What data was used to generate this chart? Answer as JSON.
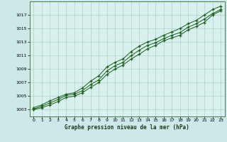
{
  "title": "Graphe pression niveau de la mer (hPa)",
  "background_color": "#cde8e8",
  "plot_bg_color": "#d8f0ee",
  "grid_color": "#b0cece",
  "line_color": "#1a5c1a",
  "xlim": [
    -0.5,
    23.5
  ],
  "ylim": [
    1002.0,
    1019.0
  ],
  "xticks": [
    0,
    1,
    2,
    3,
    4,
    5,
    6,
    7,
    8,
    9,
    10,
    11,
    12,
    13,
    14,
    15,
    16,
    17,
    18,
    19,
    20,
    21,
    22,
    23
  ],
  "yticks": [
    1003,
    1005,
    1007,
    1009,
    1011,
    1013,
    1015,
    1017
  ],
  "series1_x": [
    0,
    1,
    2,
    3,
    4,
    5,
    6,
    7,
    8,
    9,
    10,
    11,
    12,
    13,
    14,
    15,
    16,
    17,
    18,
    19,
    20,
    21,
    22,
    23
  ],
  "series1": [
    1003.0,
    1003.3,
    1003.7,
    1004.2,
    1004.8,
    1005.0,
    1005.5,
    1006.3,
    1007.0,
    1008.2,
    1009.0,
    1009.6,
    1010.5,
    1011.2,
    1012.0,
    1012.5,
    1013.2,
    1013.6,
    1014.0,
    1014.8,
    1015.3,
    1015.9,
    1017.0,
    1017.6
  ],
  "series2": [
    1003.1,
    1003.5,
    1004.0,
    1004.5,
    1005.1,
    1005.3,
    1005.8,
    1006.7,
    1007.4,
    1008.7,
    1009.5,
    1010.0,
    1011.0,
    1011.8,
    1012.5,
    1012.9,
    1013.5,
    1014.0,
    1014.4,
    1015.2,
    1015.7,
    1016.4,
    1017.2,
    1017.8
  ],
  "series3": [
    1003.3,
    1003.7,
    1004.3,
    1004.8,
    1005.3,
    1005.5,
    1006.2,
    1007.2,
    1008.0,
    1009.3,
    1010.0,
    1010.5,
    1011.6,
    1012.4,
    1013.0,
    1013.4,
    1014.0,
    1014.5,
    1015.0,
    1015.7,
    1016.2,
    1017.0,
    1017.8,
    1018.3
  ]
}
